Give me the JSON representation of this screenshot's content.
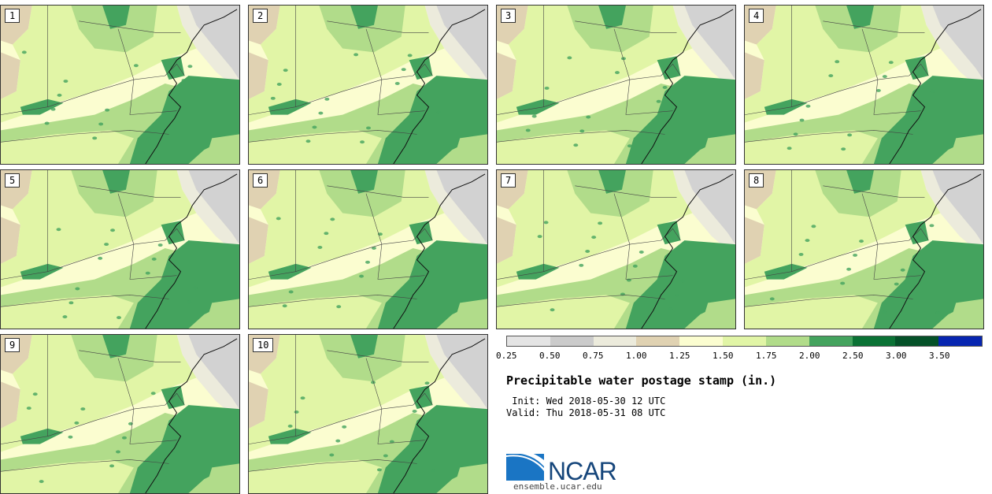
{
  "panels": [
    {
      "label": "1"
    },
    {
      "label": "2"
    },
    {
      "label": "3"
    },
    {
      "label": "4"
    },
    {
      "label": "5"
    },
    {
      "label": "6"
    },
    {
      "label": "7"
    },
    {
      "label": "8"
    },
    {
      "label": "9"
    },
    {
      "label": "10"
    }
  ],
  "legend": {
    "colors": [
      "#e4e4e4",
      "#cbcbcb",
      "#ecebdc",
      "#e0d2b2",
      "#fbfdd0",
      "#e1f5a6",
      "#b1dc8a",
      "#44a35e",
      "#0b7235",
      "#045128",
      "#0725b0"
    ],
    "labels": [
      "0.25",
      "0.50",
      "0.75",
      "1.00",
      "1.25",
      "1.50",
      "1.75",
      "2.00",
      "2.50",
      "3.00",
      "3.50"
    ]
  },
  "title": "Precipitable water postage stamp (in.)",
  "init_line": " Init: Wed 2018-05-30 12 UTC",
  "valid_line": "Valid: Thu 2018-05-31 08 UTC",
  "logo_text": "NCAR",
  "website": "ensemble.ucar.edu"
}
